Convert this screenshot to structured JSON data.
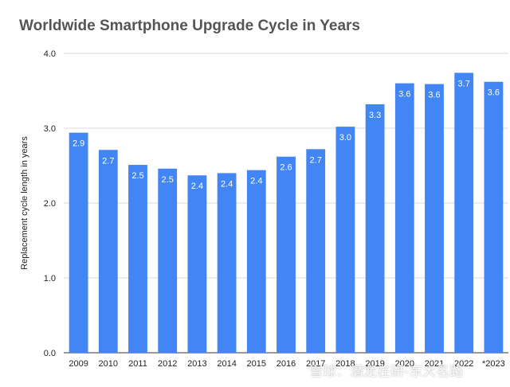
{
  "title": "Worldwide Smartphone Upgrade Cycle in Years",
  "watermark": "雪球：潜龙在研-东大名路",
  "colors": {
    "bar": "#4285f4",
    "grid": "#d9d9d9",
    "title": "#555555"
  },
  "chart_data": {
    "type": "bar",
    "title": "Worldwide Smartphone Upgrade Cycle in Years",
    "xlabel": "",
    "ylabel": "Replacement cycle length in years",
    "ylim": [
      0,
      4
    ],
    "yticks": [
      "0.0",
      "1.0",
      "2.0",
      "3.0",
      "4.0"
    ],
    "grid": true,
    "legend": "none",
    "categories": [
      "2009",
      "2010",
      "2011",
      "2012",
      "2013",
      "2014",
      "2015",
      "2016",
      "2017",
      "2018",
      "2019",
      "2020",
      "2021",
      "2022",
      "*2023"
    ],
    "values": [
      2.94,
      2.71,
      2.51,
      2.46,
      2.37,
      2.4,
      2.44,
      2.62,
      2.72,
      3.02,
      3.32,
      3.6,
      3.59,
      3.74,
      3.62
    ],
    "data_labels": [
      "2.9",
      "2.7",
      "2.5",
      "2.5",
      "2.4",
      "2.4",
      "2.4",
      "2.6",
      "2.7",
      "3.0",
      "3.3",
      "3.6",
      "3.6",
      "3.7",
      "3.6"
    ]
  }
}
